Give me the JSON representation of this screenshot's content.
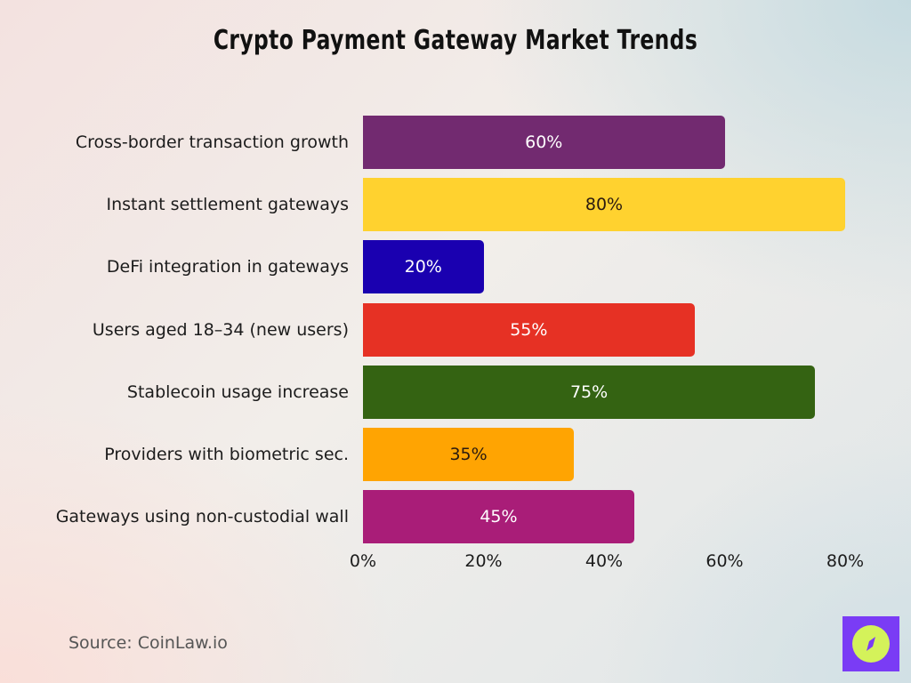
{
  "title": "Crypto Payment Gateway Market Trends",
  "source": "Source: CoinLaw.io",
  "logo": {
    "icon": "compass-icon",
    "bg_color": "#7a3cf5",
    "circle_color": "#d4f25a"
  },
  "chart_data": {
    "type": "bar",
    "orientation": "horizontal",
    "title": "Crypto Payment Gateway Market Trends",
    "xlabel": "",
    "ylabel": "",
    "xlim": [
      0,
      80
    ],
    "grid": false,
    "legend": null,
    "x_ticks": [
      "0%",
      "20%",
      "40%",
      "60%",
      "80%"
    ],
    "categories": [
      "Cross-border transaction growth",
      "Instant settlement gateways",
      "DeFi integration in gateways",
      "Users aged 18–34 (new users)",
      "Stablecoin usage increase",
      "Providers with biometric sec.",
      "Gateways using non-custodial wall"
    ],
    "values": [
      60,
      80,
      20,
      55,
      75,
      35,
      45
    ],
    "value_labels": [
      "60%",
      "80%",
      "20%",
      "55%",
      "75%",
      "35%",
      "45%"
    ],
    "colors": [
      "#722a70",
      "#ffd22f",
      "#1a00b0",
      "#e63124",
      "#346312",
      "#ffa402",
      "#a91d78"
    ],
    "label_colors": [
      "#ffffff",
      "#2a1a10",
      "#ffffff",
      "#ffffff",
      "#ffffff",
      "#2a1a10",
      "#ffffff"
    ]
  }
}
